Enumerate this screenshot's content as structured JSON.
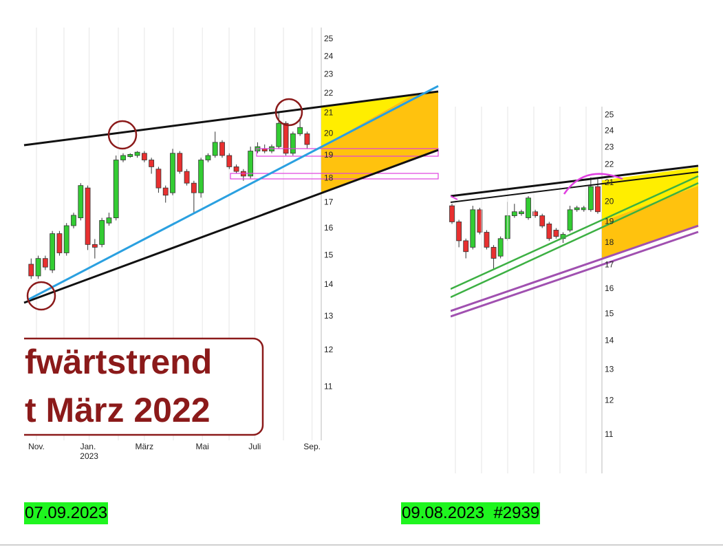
{
  "chart_data": [
    {
      "type": "candlestick",
      "log_scale": true,
      "grid": true,
      "up_color": "#33cc33",
      "down_color": "#e83030",
      "x": [
        0,
        1,
        2,
        3,
        4,
        5,
        6,
        7,
        8,
        9,
        10,
        11,
        12,
        13,
        14,
        15,
        16,
        17,
        18,
        19,
        20,
        21,
        22,
        23,
        24,
        25,
        26,
        27,
        28,
        29,
        30,
        31,
        32,
        33,
        34,
        35,
        36,
        37,
        38,
        39
      ],
      "open": [
        14.7,
        14.3,
        14.9,
        14.5,
        15.8,
        15.1,
        16.1,
        16.4,
        17.6,
        15.4,
        15.4,
        16.2,
        16.4,
        18.8,
        18.95,
        19.0,
        19.1,
        18.8,
        18.4,
        17.6,
        17.4,
        19.1,
        18.3,
        17.8,
        17.4,
        18.8,
        19.0,
        19.6,
        19.0,
        18.5,
        18.3,
        18.1,
        19.2,
        19.3,
        19.2,
        19.4,
        20.5,
        19.1,
        20.0,
        20.0
      ],
      "high": [
        14.9,
        15.0,
        15.0,
        15.9,
        15.9,
        16.2,
        16.6,
        17.8,
        17.7,
        15.6,
        16.4,
        16.6,
        19.0,
        19.1,
        19.1,
        19.2,
        19.2,
        18.9,
        18.5,
        17.7,
        19.3,
        19.2,
        18.4,
        17.9,
        18.9,
        19.1,
        20.1,
        19.7,
        19.1,
        18.6,
        18.4,
        19.4,
        19.6,
        19.5,
        19.5,
        21.0,
        20.6,
        20.1,
        20.8,
        20.1
      ],
      "low": [
        14.2,
        14.2,
        14.5,
        14.4,
        15.0,
        15.0,
        16.0,
        16.3,
        15.2,
        14.9,
        15.3,
        16.1,
        16.3,
        18.7,
        18.9,
        18.9,
        18.7,
        18.2,
        17.4,
        17.0,
        17.3,
        18.2,
        17.7,
        16.6,
        17.2,
        18.7,
        18.9,
        18.9,
        18.4,
        18.2,
        17.9,
        18.0,
        19.1,
        19.1,
        19.1,
        19.3,
        19.0,
        19.0,
        19.9,
        19.3
      ],
      "close": [
        14.3,
        14.9,
        14.6,
        15.8,
        15.1,
        16.1,
        16.5,
        17.7,
        15.4,
        15.3,
        16.3,
        16.4,
        18.8,
        19.0,
        19.05,
        19.15,
        18.8,
        18.5,
        17.6,
        17.3,
        19.1,
        18.3,
        17.8,
        17.4,
        18.8,
        19.0,
        19.6,
        19.0,
        18.5,
        18.3,
        18.1,
        19.2,
        19.4,
        19.2,
        19.4,
        20.5,
        19.1,
        20.0,
        20.3,
        19.5
      ],
      "xlim": [
        -1,
        41
      ],
      "ylim": [
        9.7,
        25.7
      ],
      "xticks": [
        {
          "value": 0.75,
          "label": "Nov."
        },
        {
          "value": 8.2,
          "label": "Jan. 2023"
        },
        {
          "value": 16,
          "label": "März"
        },
        {
          "value": 24.2,
          "label": "Mai"
        },
        {
          "value": 31.6,
          "label": "Juli"
        },
        {
          "value": 39.7,
          "label": "Sep."
        }
      ],
      "yticks": [
        11,
        12,
        13,
        14,
        15,
        16,
        17,
        18,
        19,
        20,
        21,
        22,
        23,
        24,
        25
      ]
    },
    {
      "type": "candlestick",
      "log_scale": true,
      "grid": true,
      "up_color": "#33cc33",
      "down_color": "#e83030",
      "x": [
        0,
        1,
        2,
        3,
        4,
        5,
        6,
        7,
        8,
        9,
        10,
        11,
        12,
        13,
        14,
        15,
        16,
        17,
        18,
        19,
        20,
        21
      ],
      "open": [
        19.8,
        19.0,
        18.1,
        17.8,
        19.6,
        18.5,
        17.8,
        17.4,
        18.2,
        19.3,
        19.4,
        19.2,
        19.5,
        19.3,
        18.9,
        18.6,
        18.2,
        18.6,
        19.6,
        19.6,
        19.6,
        20.8
      ],
      "high": [
        19.9,
        19.1,
        18.2,
        19.8,
        19.7,
        18.6,
        17.9,
        18.3,
        20.0,
        19.9,
        19.6,
        20.3,
        19.6,
        19.4,
        19.0,
        18.7,
        18.5,
        19.8,
        19.8,
        19.8,
        21.3,
        21.2
      ],
      "low": [
        18.9,
        17.8,
        17.3,
        17.7,
        18.4,
        17.7,
        16.8,
        17.3,
        18.1,
        19.2,
        19.3,
        19.1,
        19.2,
        18.7,
        18.1,
        18.2,
        18.0,
        18.5,
        19.5,
        19.5,
        19.5,
        19.4
      ],
      "close": [
        19.0,
        18.1,
        17.6,
        19.6,
        18.5,
        17.8,
        17.3,
        18.2,
        19.3,
        19.5,
        19.5,
        20.2,
        19.3,
        18.8,
        18.2,
        18.3,
        18.4,
        19.6,
        19.7,
        19.7,
        20.8,
        19.5
      ],
      "xlim": [
        -0.2,
        21.6
      ],
      "ylim": [
        9.96,
        25.54
      ],
      "yticks": [
        11,
        12,
        13,
        14,
        15,
        16,
        17,
        18,
        19,
        20,
        21,
        22,
        23,
        24,
        25
      ]
    }
  ],
  "annotation": {
    "lines": [
      "fwärtstrend",
      "t März 2022"
    ]
  },
  "captions": [
    "07.09.2023",
    "09.08.2023  #2939"
  ]
}
